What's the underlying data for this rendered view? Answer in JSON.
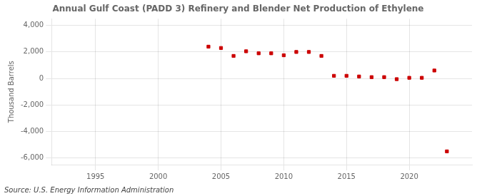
{
  "chart_data": {
    "type": "scatter",
    "title": "Annual Gulf Coast (PADD 3) Refinery and Blender Net Production of Ethylene",
    "ylabel": "Thousand Barrels",
    "source": "Source: U.S. Energy Information Administration",
    "x": [
      2004,
      2005,
      2006,
      2007,
      2008,
      2009,
      2010,
      2011,
      2012,
      2013,
      2014,
      2015,
      2016,
      2017,
      2018,
      2019,
      2020,
      2021,
      2022,
      2023
    ],
    "values": [
      2400,
      2300,
      1700,
      2050,
      1900,
      1900,
      1750,
      2000,
      2000,
      1700,
      200,
      200,
      150,
      100,
      100,
      -50,
      50,
      50,
      600,
      -5500
    ],
    "color": "#cc0000",
    "marker": "square",
    "xlim": [
      1991.5,
      2025
    ],
    "xticks": [
      1995,
      2000,
      2005,
      2010,
      2015,
      2020
    ],
    "ylim": [
      -6500,
      4500
    ],
    "yticks": [
      {
        "value": -6000,
        "label": "-6,000"
      },
      {
        "value": -4000,
        "label": "-4,000"
      },
      {
        "value": -2000,
        "label": "-2,000"
      },
      0,
      {
        "value": 2000,
        "label": "2,000"
      },
      {
        "value": 4000,
        "label": "4,000"
      }
    ],
    "grid": true
  }
}
